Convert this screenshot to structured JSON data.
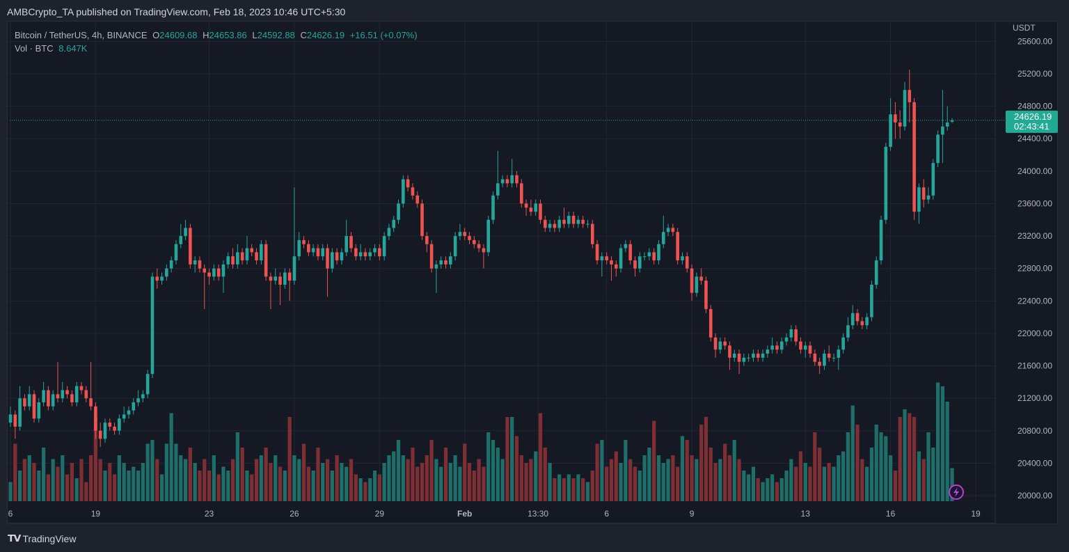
{
  "header": {
    "publisher": "AMBCrypto_TA published on TradingView.com, Feb 18, 2023 10:46 UTC+5:30"
  },
  "legend": {
    "symbol": "Bitcoin / TetherUS, 4h, BINANCE",
    "o_label": "O",
    "o": "24609.68",
    "h_label": "H",
    "h": "24653.86",
    "l_label": "L",
    "l": "24592.88",
    "c_label": "C",
    "c": "24626.19",
    "change": "+16.51 (+0.07%)",
    "vol_label": "Vol · BTC",
    "vol": "8.647K"
  },
  "footer": {
    "logo_text": "TradingView"
  },
  "colors": {
    "up": "#26a69a",
    "down": "#ef5350",
    "up_volume": "#1e6e69",
    "down_volume": "#7f2f33",
    "price_label": "#22ab94",
    "background": "#151924",
    "grid": "#222632"
  },
  "icons": {
    "replay": "lightning-icon",
    "logo": "tradingview-logo"
  },
  "chart_data": {
    "type": "candlestick",
    "interval": "4h",
    "currency_label": "USDT",
    "ylim": [
      20000,
      25600
    ],
    "y_ticks": [
      "25600.00",
      "25200.00",
      "24800.00",
      "24400.00",
      "24000.00",
      "23600.00",
      "23200.00",
      "22800.00",
      "22400.00",
      "22000.00",
      "21600.00",
      "21200.00",
      "20800.00",
      "20400.00",
      "20000.00"
    ],
    "x_ticks": [
      "6",
      "19",
      "23",
      "26",
      "29",
      "Feb",
      "13:30",
      "6",
      "9",
      "13",
      "16",
      "19"
    ],
    "grid": true,
    "last_price": "24626.19",
    "countdown": "02:43:41",
    "volume_unit": "K BTC",
    "candles_ohlc": [
      [
        20900,
        21100,
        20850,
        21000
      ],
      [
        21000,
        21050,
        20700,
        20850
      ],
      [
        20850,
        21350,
        20800,
        21200
      ],
      [
        21200,
        21250,
        21050,
        21100
      ],
      [
        21100,
        21350,
        21050,
        21250
      ],
      [
        21250,
        21300,
        20900,
        20950
      ],
      [
        20950,
        21200,
        20900,
        21150
      ],
      [
        21150,
        21400,
        21100,
        21300
      ],
      [
        21300,
        21350,
        21050,
        21100
      ],
      [
        21100,
        21300,
        21050,
        21250
      ],
      [
        21250,
        21650,
        21150,
        21200
      ],
      [
        21200,
        21400,
        21150,
        21300
      ],
      [
        21300,
        21350,
        21200,
        21250
      ],
      [
        21250,
        21300,
        21100,
        21150
      ],
      [
        21150,
        21400,
        21100,
        21350
      ],
      [
        21350,
        21400,
        21250,
        21300
      ],
      [
        21300,
        21350,
        21150,
        21200
      ],
      [
        21200,
        21650,
        21050,
        21100
      ],
      [
        21100,
        21150,
        20700,
        20800
      ],
      [
        20800,
        20900,
        20600,
        20700
      ],
      [
        20700,
        20950,
        20650,
        20900
      ],
      [
        20900,
        20950,
        20800,
        20850
      ],
      [
        20850,
        20900,
        20750,
        20800
      ],
      [
        20800,
        21000,
        20750,
        20950
      ],
      [
        20950,
        21100,
        20900,
        21000
      ],
      [
        21000,
        21100,
        20950,
        21050
      ],
      [
        21050,
        21200,
        21000,
        21150
      ],
      [
        21150,
        21300,
        21100,
        21200
      ],
      [
        21200,
        21300,
        21150,
        21250
      ],
      [
        21250,
        21550,
        21200,
        21500
      ],
      [
        21500,
        22750,
        21450,
        22700
      ],
      [
        22700,
        22800,
        22550,
        22650
      ],
      [
        22650,
        22750,
        22600,
        22700
      ],
      [
        22700,
        22850,
        22650,
        22800
      ],
      [
        22800,
        22950,
        22750,
        22900
      ],
      [
        22900,
        23150,
        22850,
        23100
      ],
      [
        23100,
        23350,
        23050,
        23200
      ],
      [
        23200,
        23400,
        23150,
        23300
      ],
      [
        23300,
        23350,
        22800,
        22850
      ],
      [
        22850,
        22950,
        22750,
        22900
      ],
      [
        22900,
        22950,
        22750,
        22800
      ],
      [
        22800,
        22850,
        22300,
        22750
      ],
      [
        22750,
        22800,
        22600,
        22700
      ],
      [
        22700,
        22850,
        22650,
        22800
      ],
      [
        22800,
        22850,
        22650,
        22700
      ],
      [
        22700,
        22900,
        22500,
        22850
      ],
      [
        22850,
        23000,
        22800,
        22950
      ],
      [
        22950,
        23050,
        22800,
        22850
      ],
      [
        22850,
        23100,
        22800,
        23000
      ],
      [
        23000,
        23050,
        22850,
        22900
      ],
      [
        22900,
        23200,
        22850,
        23050
      ],
      [
        23050,
        23100,
        22950,
        23000
      ],
      [
        23000,
        23050,
        22850,
        22900
      ],
      [
        22900,
        23150,
        22850,
        23100
      ],
      [
        23100,
        23150,
        22650,
        22700
      ],
      [
        22700,
        22750,
        22300,
        22650
      ],
      [
        22650,
        22800,
        22600,
        22700
      ],
      [
        22700,
        22750,
        22350,
        22600
      ],
      [
        22600,
        22800,
        22550,
        22750
      ],
      [
        22750,
        22800,
        22400,
        22650
      ],
      [
        22650,
        23800,
        22600,
        22950
      ],
      [
        22950,
        23250,
        22900,
        23150
      ],
      [
        23150,
        23200,
        23050,
        23100
      ],
      [
        23100,
        23150,
        22950,
        23000
      ],
      [
        23000,
        23100,
        22950,
        23050
      ],
      [
        23050,
        23100,
        22900,
        22950
      ],
      [
        22950,
        23100,
        22900,
        23050
      ],
      [
        23050,
        23100,
        22450,
        22800
      ],
      [
        22800,
        23050,
        22750,
        23000
      ],
      [
        23000,
        23050,
        22850,
        22900
      ],
      [
        22900,
        23050,
        22850,
        23000
      ],
      [
        23000,
        23400,
        22950,
        23200
      ],
      [
        23200,
        23250,
        23000,
        23050
      ],
      [
        23050,
        23100,
        22900,
        22950
      ],
      [
        22950,
        23100,
        22900,
        23000
      ],
      [
        23000,
        23050,
        22900,
        22950
      ],
      [
        22950,
        23050,
        22900,
        23000
      ],
      [
        23000,
        23100,
        22950,
        23050
      ],
      [
        23050,
        23100,
        22900,
        22950
      ],
      [
        22950,
        23250,
        22900,
        23200
      ],
      [
        23200,
        23350,
        23150,
        23300
      ],
      [
        23300,
        23450,
        23250,
        23400
      ],
      [
        23400,
        23650,
        23350,
        23600
      ],
      [
        23600,
        23950,
        23550,
        23900
      ],
      [
        23900,
        23950,
        23750,
        23800
      ],
      [
        23800,
        23850,
        23650,
        23700
      ],
      [
        23700,
        23750,
        23550,
        23600
      ],
      [
        23600,
        23650,
        23150,
        23200
      ],
      [
        23200,
        23250,
        23000,
        23100
      ],
      [
        23100,
        23150,
        22750,
        22800
      ],
      [
        22800,
        22900,
        22500,
        22850
      ],
      [
        22850,
        22950,
        22800,
        22900
      ],
      [
        22900,
        22950,
        22800,
        22850
      ],
      [
        22850,
        23000,
        22800,
        22950
      ],
      [
        22950,
        23250,
        22900,
        23200
      ],
      [
        23200,
        23350,
        23150,
        23250
      ],
      [
        23250,
        23300,
        23150,
        23200
      ],
      [
        23200,
        23250,
        23100,
        23150
      ],
      [
        23150,
        23200,
        23050,
        23100
      ],
      [
        23100,
        23150,
        23000,
        23050
      ],
      [
        23050,
        23100,
        22800,
        23000
      ],
      [
        23000,
        23450,
        22950,
        23400
      ],
      [
        23400,
        23750,
        23350,
        23700
      ],
      [
        23700,
        24250,
        23650,
        23850
      ],
      [
        23850,
        23950,
        23800,
        23900
      ],
      [
        23900,
        23950,
        23800,
        23850
      ],
      [
        23850,
        24150,
        23800,
        23950
      ],
      [
        23950,
        24000,
        23800,
        23850
      ],
      [
        23850,
        23900,
        23550,
        23600
      ],
      [
        23600,
        23650,
        23450,
        23550
      ],
      [
        23550,
        23650,
        23450,
        23500
      ],
      [
        23500,
        23650,
        23450,
        23600
      ],
      [
        23600,
        23650,
        23350,
        23400
      ],
      [
        23400,
        23450,
        23250,
        23300
      ],
      [
        23300,
        23400,
        23250,
        23350
      ],
      [
        23350,
        23400,
        23250,
        23300
      ],
      [
        23300,
        23450,
        23250,
        23400
      ],
      [
        23400,
        23550,
        23300,
        23350
      ],
      [
        23350,
        23500,
        23300,
        23450
      ],
      [
        23450,
        23500,
        23300,
        23350
      ],
      [
        23350,
        23450,
        23300,
        23400
      ],
      [
        23400,
        23450,
        23300,
        23350
      ],
      [
        23350,
        23400,
        23300,
        23350
      ],
      [
        23350,
        23400,
        23050,
        23100
      ],
      [
        23100,
        23150,
        22850,
        22900
      ],
      [
        22900,
        23000,
        22700,
        22950
      ],
      [
        22950,
        23000,
        22850,
        22900
      ],
      [
        22900,
        22950,
        22650,
        22850
      ],
      [
        22850,
        22900,
        22700,
        22800
      ],
      [
        22800,
        23100,
        22750,
        23050
      ],
      [
        23050,
        23150,
        23000,
        23100
      ],
      [
        23100,
        23150,
        22850,
        22900
      ],
      [
        22900,
        22950,
        22700,
        22800
      ],
      [
        22800,
        23000,
        22750,
        22950
      ],
      [
        22950,
        23000,
        22900,
        22950
      ],
      [
        22950,
        23050,
        22900,
        23000
      ],
      [
        23000,
        23050,
        22850,
        22900
      ],
      [
        22900,
        23150,
        22850,
        23100
      ],
      [
        23100,
        23450,
        23050,
        23250
      ],
      [
        23250,
        23350,
        23200,
        23300
      ],
      [
        23300,
        23350,
        23200,
        23250
      ],
      [
        23250,
        23300,
        22850,
        22900
      ],
      [
        22900,
        23000,
        22850,
        22950
      ],
      [
        22950,
        23000,
        22750,
        22800
      ],
      [
        22800,
        22850,
        22400,
        22500
      ],
      [
        22500,
        22750,
        22450,
        22700
      ],
      [
        22700,
        22800,
        22600,
        22650
      ],
      [
        22650,
        22700,
        22250,
        22300
      ],
      [
        22300,
        22350,
        21900,
        21950
      ],
      [
        21950,
        22000,
        21700,
        21800
      ],
      [
        21800,
        21950,
        21750,
        21900
      ],
      [
        21900,
        21950,
        21800,
        21850
      ],
      [
        21850,
        21900,
        21550,
        21700
      ],
      [
        21700,
        21800,
        21650,
        21750
      ],
      [
        21750,
        21800,
        21500,
        21650
      ],
      [
        21650,
        21750,
        21600,
        21700
      ],
      [
        21700,
        21750,
        21650,
        21700
      ],
      [
        21700,
        21800,
        21650,
        21750
      ],
      [
        21750,
        21800,
        21650,
        21700
      ],
      [
        21700,
        21800,
        21650,
        21750
      ],
      [
        21750,
        21850,
        21700,
        21800
      ],
      [
        21800,
        21950,
        21750,
        21850
      ],
      [
        21850,
        21900,
        21750,
        21800
      ],
      [
        21800,
        21950,
        21750,
        21900
      ],
      [
        21900,
        22000,
        21850,
        21950
      ],
      [
        21950,
        22100,
        21900,
        22050
      ],
      [
        22050,
        22100,
        21850,
        21900
      ],
      [
        21900,
        21950,
        21750,
        21800
      ],
      [
        21800,
        21900,
        21700,
        21850
      ],
      [
        21850,
        21900,
        21700,
        21750
      ],
      [
        21750,
        21800,
        21600,
        21650
      ],
      [
        21650,
        21700,
        21500,
        21600
      ],
      [
        21600,
        21800,
        21550,
        21750
      ],
      [
        21750,
        21850,
        21650,
        21700
      ],
      [
        21700,
        21750,
        21650,
        21700
      ],
      [
        21700,
        21850,
        21550,
        21800
      ],
      [
        21800,
        22000,
        21750,
        21950
      ],
      [
        21950,
        22200,
        21900,
        22100
      ],
      [
        22100,
        22350,
        22050,
        22250
      ],
      [
        22250,
        22300,
        22100,
        22150
      ],
      [
        22150,
        22200,
        22050,
        22100
      ],
      [
        22100,
        22250,
        22050,
        22200
      ],
      [
        22200,
        22650,
        22150,
        22600
      ],
      [
        22600,
        22950,
        22550,
        22900
      ],
      [
        22900,
        23450,
        22850,
        23400
      ],
      [
        23400,
        24350,
        23350,
        24300
      ],
      [
        24300,
        24900,
        24250,
        24700
      ],
      [
        24700,
        24850,
        24400,
        24600
      ],
      [
        24600,
        24750,
        24400,
        24550
      ],
      [
        24550,
        25100,
        24500,
        25000
      ],
      [
        25000,
        25250,
        24600,
        24850
      ],
      [
        24850,
        24900,
        23400,
        23500
      ],
      [
        23500,
        23850,
        23350,
        23800
      ],
      [
        23800,
        23900,
        23550,
        23650
      ],
      [
        23650,
        23800,
        23600,
        23700
      ],
      [
        23700,
        24150,
        23650,
        24100
      ],
      [
        24100,
        24500,
        24050,
        24450
      ],
      [
        24450,
        25000,
        24100,
        24550
      ],
      [
        24550,
        24800,
        24500,
        24600
      ],
      [
        24609.68,
        24653.86,
        24592.88,
        24626.19
      ]
    ],
    "volume": [
      5,
      15,
      8,
      11,
      12,
      10,
      8,
      14,
      7,
      11,
      9,
      12,
      7,
      10,
      6,
      11,
      5,
      12,
      22,
      11,
      8,
      10,
      7,
      12,
      10,
      8,
      9,
      8,
      10,
      15,
      16,
      11,
      7,
      15,
      23,
      15,
      12,
      11,
      14,
      10,
      8,
      11,
      8,
      12,
      7,
      9,
      8,
      11,
      18,
      14,
      8,
      7,
      11,
      12,
      14,
      10,
      12,
      9,
      8,
      22,
      12,
      11,
      15,
      9,
      8,
      14,
      10,
      11,
      8,
      12,
      10,
      9,
      11,
      7,
      6,
      5,
      6,
      8,
      7,
      10,
      12,
      13,
      16,
      12,
      11,
      14,
      9,
      10,
      12,
      16,
      11,
      9,
      14,
      10,
      12,
      9,
      15,
      10,
      8,
      11,
      9,
      18,
      16,
      14,
      11,
      22,
      22,
      17,
      12,
      10,
      11,
      13,
      23,
      14,
      10,
      6,
      7,
      6,
      7,
      6,
      7,
      6,
      5,
      8,
      15,
      16,
      9,
      11,
      13,
      10,
      16,
      11,
      9,
      8,
      12,
      14,
      21,
      12,
      10,
      11,
      12,
      9,
      17,
      16,
      12,
      11,
      20,
      22,
      14,
      10,
      11,
      15,
      12,
      16,
      11,
      8,
      7,
      9,
      6,
      5,
      6,
      7,
      5,
      6,
      8,
      11,
      9,
      13,
      10,
      9,
      18,
      14,
      9,
      10,
      9,
      12,
      13,
      18,
      25,
      20,
      11,
      9,
      14,
      20,
      18,
      17,
      12,
      8,
      22,
      24,
      23,
      22,
      13,
      11,
      18,
      14,
      31,
      30,
      26,
      8.647
    ]
  }
}
